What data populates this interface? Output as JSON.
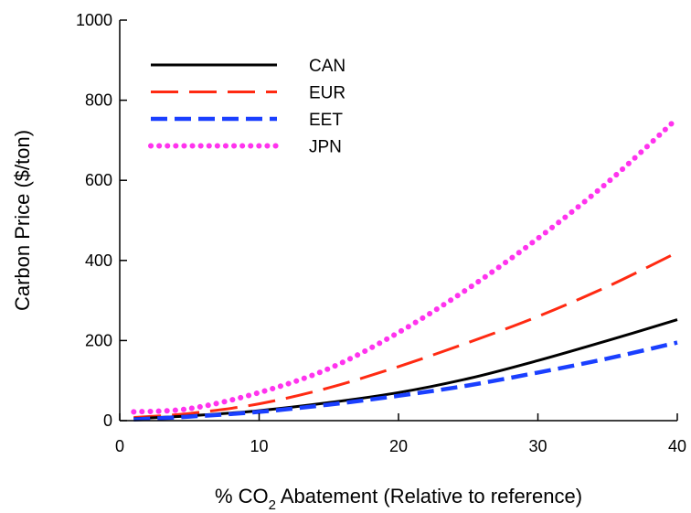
{
  "chart_data": {
    "type": "line",
    "title": "",
    "xlabel": {
      "prefix": "% CO",
      "subscript": "2",
      "suffix": " Abatement (Relative to reference)"
    },
    "ylabel": "Carbon Price ($/ton)",
    "xlim": [
      0,
      40
    ],
    "ylim": [
      0,
      1000
    ],
    "xticks": [
      0,
      10,
      20,
      30,
      40
    ],
    "yticks": [
      0,
      200,
      400,
      600,
      800,
      1000
    ],
    "grid": false,
    "legend_position": "top-left",
    "x": [
      1,
      5,
      10,
      15,
      20,
      25,
      30,
      35,
      40
    ],
    "series": [
      {
        "name": "CAN",
        "color": "#000000",
        "dash": "solid",
        "values": [
          5,
          12,
          25,
          45,
          70,
          105,
          150,
          200,
          252
        ]
      },
      {
        "name": "EUR",
        "color": "#ff2a12",
        "dash": "long-dash",
        "values": [
          8,
          18,
          42,
          82,
          135,
          195,
          260,
          335,
          420
        ]
      },
      {
        "name": "EET",
        "color": "#1a3fff",
        "dash": "dash",
        "values": [
          3,
          10,
          22,
          40,
          62,
          88,
          120,
          155,
          195
        ]
      },
      {
        "name": "JPN",
        "color": "#ff33ee",
        "dash": "dot",
        "values": [
          22,
          30,
          70,
          130,
          220,
          330,
          455,
          595,
          755
        ]
      }
    ]
  }
}
